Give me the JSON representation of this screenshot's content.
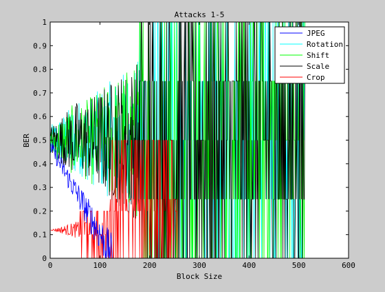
{
  "chart_data": {
    "type": "line",
    "title": "Attacks 1-5",
    "xlabel": "Block Size",
    "ylabel": "BER",
    "xlim": [
      0,
      600
    ],
    "ylim": [
      0,
      1
    ],
    "xticks": [
      0,
      100,
      200,
      300,
      400,
      500,
      600
    ],
    "yticks": [
      0,
      0.1,
      0.2,
      0.3,
      0.4,
      0.5,
      0.6,
      0.7,
      0.8,
      0.9,
      1
    ],
    "grid": false,
    "legend_position": "top-right",
    "series": [
      {
        "name": "JPEG",
        "color": "#0000ff",
        "x_range": [
          1,
          128
        ],
        "trend": {
          "start": 0.47,
          "end": 0.0,
          "start_x": 1,
          "end_x": 128
        }
      },
      {
        "name": "Rotation",
        "color": "#00ffff",
        "x_range": [
          1,
          512
        ],
        "trend": {
          "start": 0.5,
          "end": 1.0,
          "start_x": 1,
          "end_x": 512
        }
      },
      {
        "name": "Shift",
        "color": "#00ff00",
        "x_range": [
          1,
          512
        ],
        "trend": {
          "start": 0.5,
          "end": 1.0,
          "start_x": 1,
          "end_x": 512
        }
      },
      {
        "name": "Scale",
        "color": "#000000",
        "x_range": [
          1,
          512
        ],
        "trend": {
          "start": 0.5,
          "end": 1.0,
          "start_x": 1,
          "end_x": 512
        }
      },
      {
        "name": "Crop",
        "color": "#ff0000",
        "x_range": [
          1,
          256
        ],
        "trend": {
          "start": 0.12,
          "end": 0.5,
          "start_x": 1,
          "end_x": 256
        }
      }
    ]
  }
}
